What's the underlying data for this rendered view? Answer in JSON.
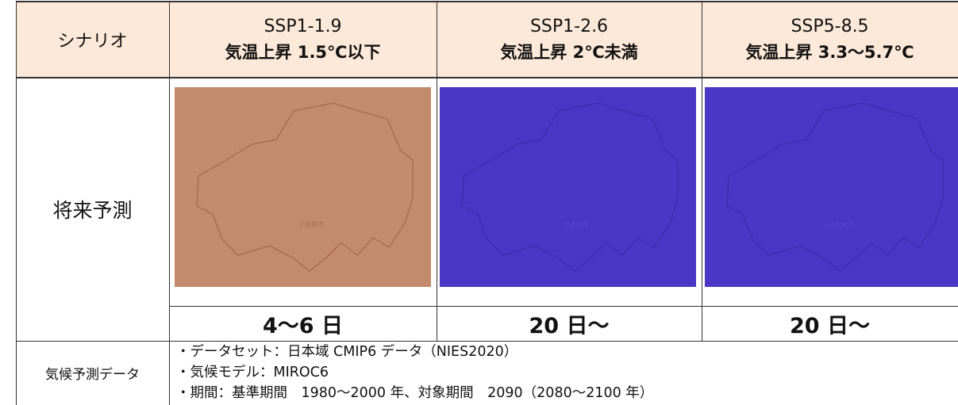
{
  "header": {
    "label": "シナリオ",
    "scenarios": [
      {
        "name": "SSP1-1.9",
        "subtitle": "気温上昇 1.5℃以下"
      },
      {
        "name": "SSP1-2.6",
        "subtitle": "気温上昇 2℃未満"
      },
      {
        "name": "SSP5-8.5",
        "subtitle": "気温上昇 3.3〜5.7℃"
      }
    ]
  },
  "projection": {
    "label": "将来予測",
    "map_label": "小金井市",
    "days": [
      "4〜6 日",
      "20 日〜",
      "20 日〜"
    ]
  },
  "data_source": {
    "label": "気候予測データ",
    "lines": [
      "・データセット：日本域 CMIP6 データ（NIES2020）",
      "・気候モデル：MIROC6",
      "・期間：基準期間　1980〜2000 年、対象期間　2090（2080〜2100 年）"
    ]
  }
}
